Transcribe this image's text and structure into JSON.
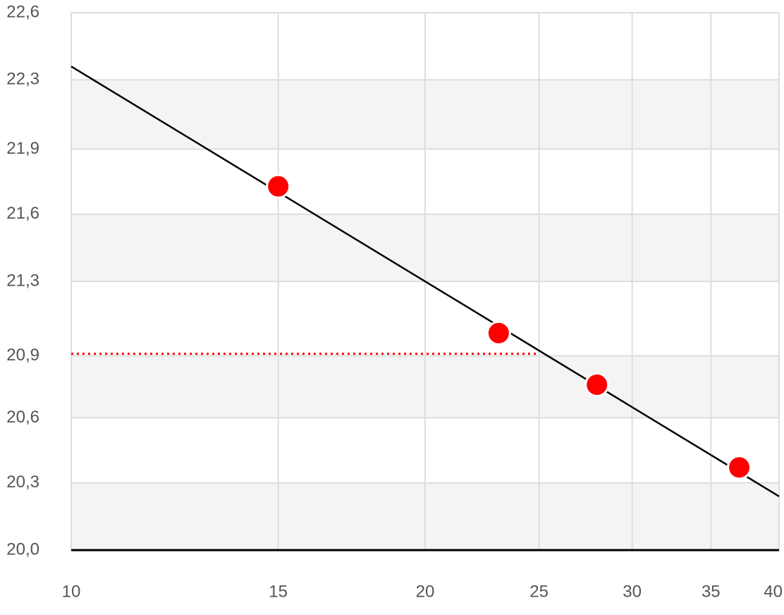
{
  "chart_data": {
    "type": "scatter",
    "x": [
      15,
      23.1,
      28,
      37
    ],
    "values": [
      21.76,
      21.05,
      20.8,
      20.4
    ],
    "color": "#ff0000",
    "xlim": [
      10,
      40
    ],
    "xticks": [
      10,
      15,
      20,
      25,
      30,
      35,
      40
    ],
    "xscale": "log",
    "ylim": [
      20,
      22.6
    ],
    "yticks": [
      {
        "value": 20,
        "label": "20,0"
      },
      {
        "value": 20.325,
        "label": "20,3"
      },
      {
        "value": 20.64,
        "label": "20,6"
      },
      {
        "value": 20.94,
        "label": "20,9"
      },
      {
        "value": 21.3,
        "label": "21,3"
      },
      {
        "value": 21.625,
        "label": "21,6"
      },
      {
        "value": 21.94,
        "label": "21,9"
      },
      {
        "value": 22.275,
        "label": "22,3"
      },
      {
        "value": 22.6,
        "label": "22,6"
      }
    ],
    "grid": true,
    "trend_line": {
      "x": [
        10,
        40
      ],
      "values": [
        22.34,
        20.26
      ],
      "color": "#000000"
    },
    "reference_line": {
      "value": 20.95,
      "x_end": 25,
      "color": "#ff0000"
    }
  }
}
